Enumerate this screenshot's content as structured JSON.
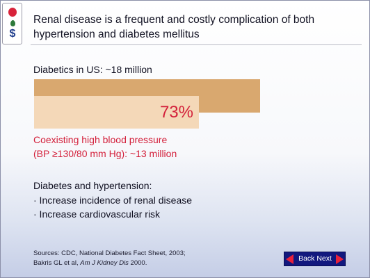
{
  "slide": {
    "title_line1": "Renal disease is a frequent and costly complication of both",
    "title_line2": "hypertension and diabetes mellitus",
    "diabetics_label": "Diabetics in US: ~18 million",
    "percent_label": "73%",
    "percent_value": 73,
    "coexisting_line1": "Coexisting high blood pressure",
    "coexisting_line2": "(BP ≥130/80 mm Hg): ~13 million",
    "dh_heading": "Diabetes and hypertension:",
    "dh_bullets": [
      "·  Increase incidence of renal disease",
      "·  Increase cardiovascular risk"
    ],
    "sources_line1": "Sources: CDC, National Diabetes Fact Sheet, 2003;",
    "sources_line2_prefix": "Bakris GL et al, ",
    "sources_line2_journal": "Am J Kidney Dis",
    "sources_line2_suffix": " 2000."
  },
  "navigation": {
    "label": "Back Next"
  },
  "logo": {
    "dollar_glyph": "$"
  },
  "colors": {
    "bar_full": "#d9a86f",
    "bar_part": "#f4d8b8",
    "highlight_red": "#d31f3a",
    "nav_bg": "#12187e"
  }
}
